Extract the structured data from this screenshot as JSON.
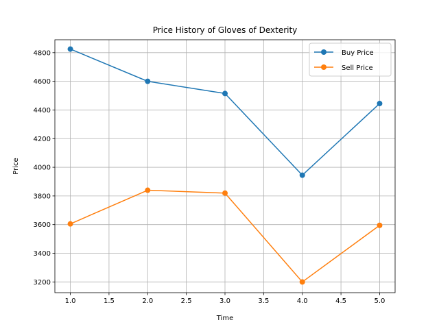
{
  "chart_data": {
    "type": "line",
    "title": "Price History of Gloves of Dexterity",
    "xlabel": "Time",
    "ylabel": "Price",
    "x": [
      1,
      2,
      3,
      4,
      5
    ],
    "xlim": [
      0.8,
      5.2
    ],
    "ylim": [
      3125,
      4890
    ],
    "xticks": [
      "1.0",
      "1.5",
      "2.0",
      "2.5",
      "3.0",
      "3.5",
      "4.0",
      "4.5",
      "5.0"
    ],
    "xtick_values": [
      1.0,
      1.5,
      2.0,
      2.5,
      3.0,
      3.5,
      4.0,
      4.5,
      5.0
    ],
    "yticks": [
      "3200",
      "3400",
      "3600",
      "3800",
      "4000",
      "4200",
      "4400",
      "4600",
      "4800"
    ],
    "ytick_values": [
      3200,
      3400,
      3600,
      3800,
      4000,
      4200,
      4400,
      4600,
      4800
    ],
    "grid": true,
    "legend_position": "top-right",
    "series": [
      {
        "name": "Buy Price",
        "color": "#1f77b4",
        "marker": "circle",
        "values": [
          4825,
          4600,
          4515,
          3945,
          4445
        ]
      },
      {
        "name": "Sell Price",
        "color": "#ff7f0e",
        "marker": "circle",
        "values": [
          3605,
          3840,
          3820,
          3200,
          3595
        ]
      }
    ]
  }
}
